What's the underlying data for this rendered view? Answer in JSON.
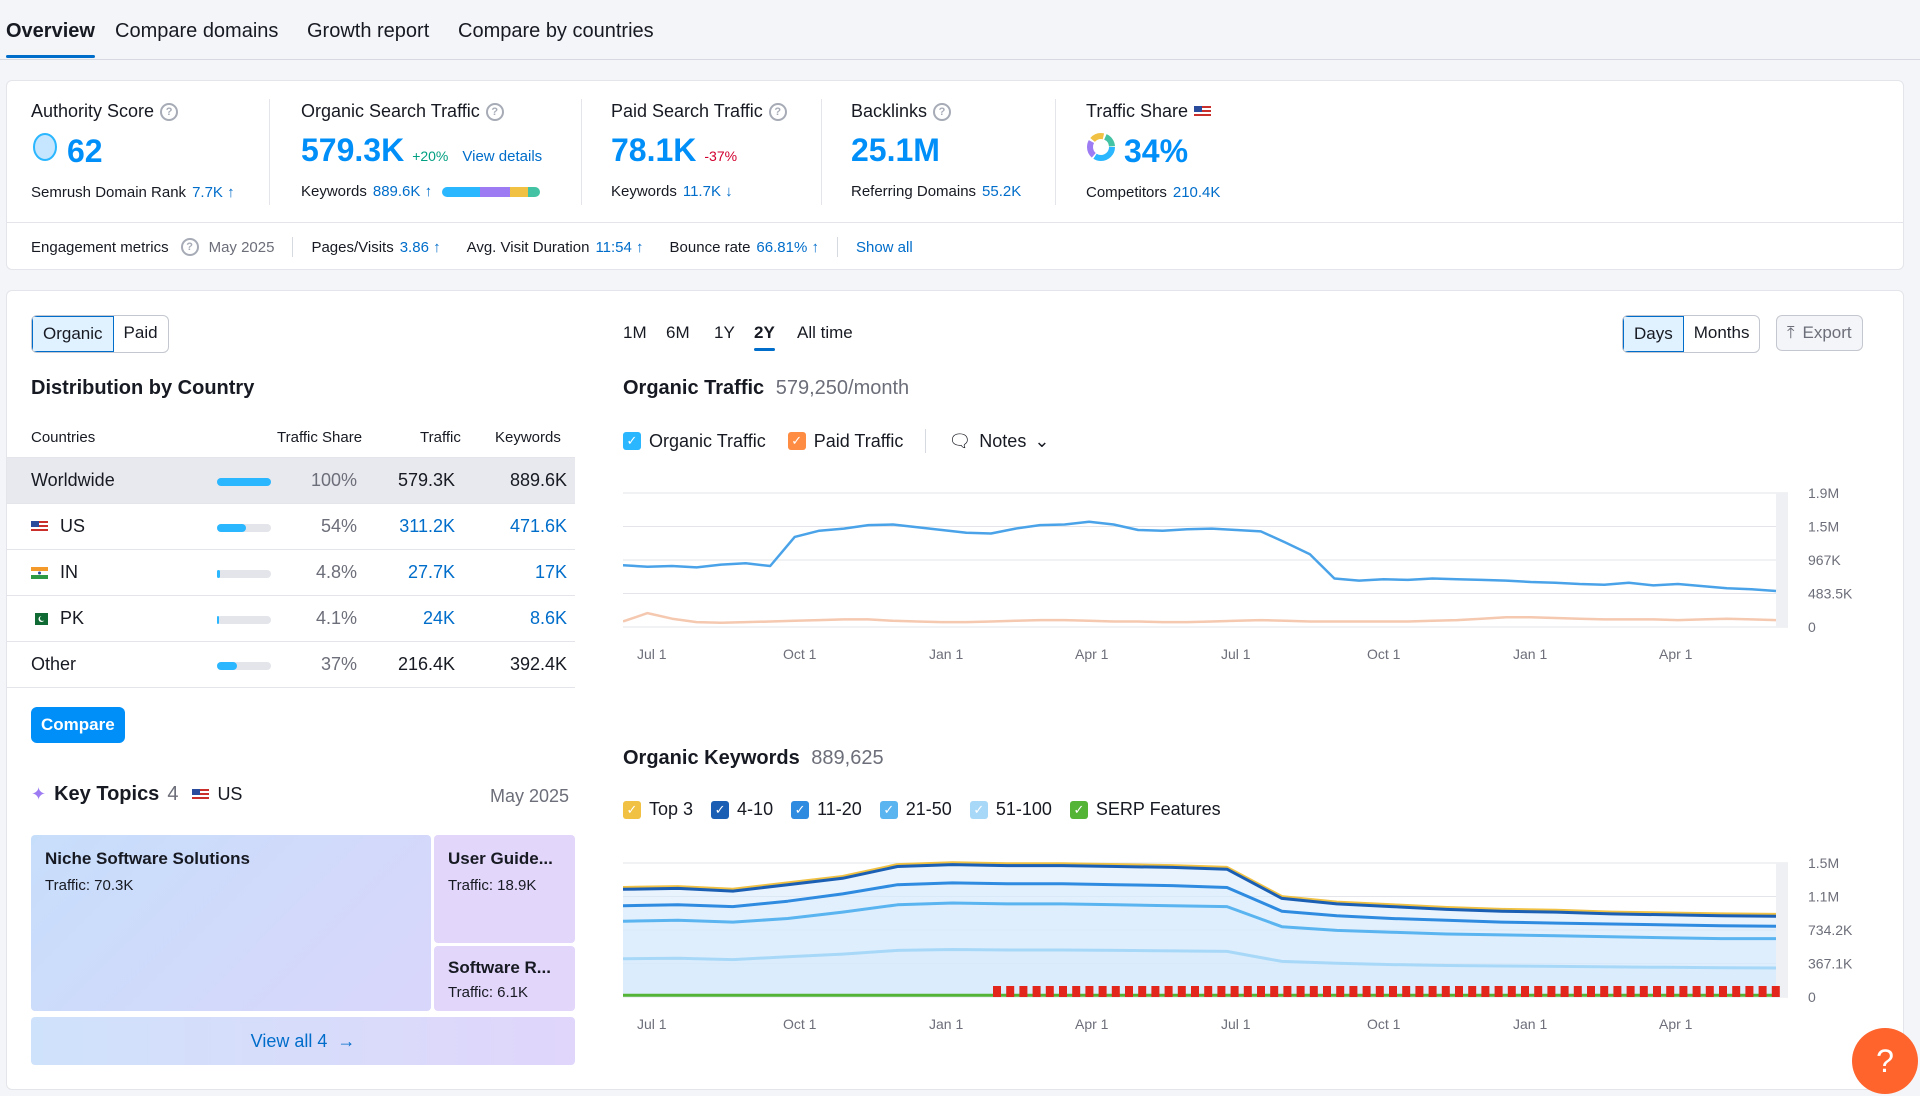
{
  "tabs": [
    "Overview",
    "Compare domains",
    "Growth report",
    "Compare by countries"
  ],
  "metrics": {
    "authority": {
      "label": "Authority Score",
      "value": "62",
      "sub_label": "Semrush Domain Rank",
      "sub_value": "7.7K ↑"
    },
    "organic": {
      "label": "Organic Search Traffic",
      "value": "579.3K",
      "delta": "+20%",
      "link": "View details",
      "sub_label": "Keywords",
      "sub_value": "889.6K ↑"
    },
    "paid": {
      "label": "Paid Search Traffic",
      "value": "78.1K",
      "delta": "-37%",
      "sub_label": "Keywords",
      "sub_value": "11.7K ↓"
    },
    "backlinks": {
      "label": "Backlinks",
      "value": "25.1M",
      "sub_label": "Referring Domains",
      "sub_value": "55.2K"
    },
    "share": {
      "label": "Traffic Share",
      "value": "34%",
      "sub_label": "Competitors",
      "sub_value": "210.4K"
    }
  },
  "engagement": {
    "label": "Engagement metrics",
    "date": "May 2025",
    "pages_label": "Pages/Visits",
    "pages_value": "3.86 ↑",
    "duration_label": "Avg. Visit Duration",
    "duration_value": "11:54 ↑",
    "bounce_label": "Bounce rate",
    "bounce_value": "66.81% ↑",
    "show_all": "Show all"
  },
  "left": {
    "toggle": [
      "Organic",
      "Paid"
    ],
    "title": "Distribution by Country",
    "headers": [
      "Countries",
      "Traffic Share",
      "Traffic",
      "Keywords"
    ],
    "rows": [
      {
        "country": "Worldwide",
        "share": "100%",
        "share_num": 1.0,
        "traffic": "579.3K",
        "keywords": "889.6K"
      },
      {
        "country": "US",
        "share": "54%",
        "share_num": 0.54,
        "traffic": "311.2K",
        "keywords": "471.6K"
      },
      {
        "country": "IN",
        "share": "4.8%",
        "share_num": 0.048,
        "traffic": "27.7K",
        "keywords": "17K"
      },
      {
        "country": "PK",
        "share": "4.1%",
        "share_num": 0.041,
        "traffic": "24K",
        "keywords": "8.6K"
      },
      {
        "country": "Other",
        "share": "37%",
        "share_num": 0.37,
        "traffic": "216.4K",
        "keywords": "392.4K"
      }
    ],
    "compare": "Compare",
    "topics": {
      "title": "Key Topics",
      "count": "4",
      "country": "US",
      "date": "May 2025",
      "tiles": [
        {
          "title": "Niche Software Solutions",
          "traffic": "Traffic: 70.3K"
        },
        {
          "title": "User Guide...",
          "traffic": "Traffic: 18.9K"
        },
        {
          "title": "Software R...",
          "traffic": "Traffic: 6.1K"
        }
      ],
      "view_all": "View all 4"
    }
  },
  "right": {
    "ranges": [
      "1M",
      "6M",
      "1Y",
      "2Y",
      "All time"
    ],
    "active_range": "2Y",
    "granularity": [
      "Days",
      "Months"
    ],
    "export": "Export",
    "traffic_title": "Organic Traffic",
    "traffic_value": "579,250/month",
    "traffic_legend": [
      "Organic Traffic",
      "Paid Traffic",
      "Notes"
    ],
    "keywords_title": "Organic Keywords",
    "keywords_value": "889,625",
    "keywords_legend": [
      "Top 3",
      "4-10",
      "11-20",
      "21-50",
      "51-100",
      "SERP Features"
    ]
  },
  "chart_data": [
    {
      "type": "line",
      "title": "Organic Traffic",
      "x_ticks": [
        "Jul 1",
        "Oct 1",
        "Jan 1",
        "Apr 1",
        "Jul 1",
        "Oct 1",
        "Jan 1",
        "Apr 1"
      ],
      "y_ticks": [
        "1.9M",
        "1.5M",
        "967K",
        "483.5K",
        "0"
      ],
      "ylim": [
        0,
        1934000
      ],
      "series": [
        {
          "name": "Organic Traffic",
          "color": "#4aa3e8",
          "values": [
            890000,
            870000,
            880000,
            860000,
            900000,
            920000,
            880000,
            1300000,
            1390000,
            1420000,
            1470000,
            1480000,
            1440000,
            1400000,
            1360000,
            1350000,
            1420000,
            1470000,
            1480000,
            1520000,
            1480000,
            1400000,
            1390000,
            1410000,
            1420000,
            1400000,
            1380000,
            1220000,
            1050000,
            700000,
            670000,
            690000,
            680000,
            700000,
            690000,
            680000,
            670000,
            650000,
            640000,
            620000,
            610000,
            640000,
            600000,
            620000,
            590000,
            560000,
            545000,
            520000
          ]
        },
        {
          "name": "Paid Traffic",
          "color": "#f5c8b0",
          "values": [
            80000,
            200000,
            120000,
            70000,
            60000,
            70000,
            80000,
            90000,
            100000,
            110000,
            110000,
            90000,
            80000,
            70000,
            70000,
            80000,
            90000,
            100000,
            100000,
            90000,
            80000,
            80000,
            70000,
            70000,
            80000,
            90000,
            100000,
            90000,
            80000,
            80000,
            80000,
            80000,
            80000,
            90000,
            100000,
            120000,
            140000,
            140000,
            130000,
            120000,
            110000,
            110000,
            110000,
            100000,
            110000,
            120000,
            110000,
            100000
          ]
        }
      ]
    },
    {
      "type": "area",
      "title": "Organic Keywords",
      "x_ticks": [
        "Jul 1",
        "Oct 1",
        "Jan 1",
        "Apr 1",
        "Jul 1",
        "Oct 1",
        "Jan 1",
        "Apr 1"
      ],
      "y_ticks": [
        "1.5M",
        "1.1M",
        "734.2K",
        "367.1K",
        "0"
      ],
      "ylim": [
        0,
        1468000
      ],
      "series": [
        {
          "name": "Top 3",
          "color": "#f0c142",
          "values": [
            1200000,
            1210000,
            1180000,
            1250000,
            1320000,
            1450000,
            1470000,
            1460000,
            1460000,
            1450000,
            1440000,
            1420000,
            1100000,
            1040000,
            1010000,
            980000,
            960000,
            950000,
            930000,
            920000,
            910000,
            905000
          ]
        },
        {
          "name": "4-10",
          "color": "#1a5fb4",
          "values": [
            1180000,
            1190000,
            1160000,
            1230000,
            1300000,
            1430000,
            1450000,
            1440000,
            1440000,
            1430000,
            1420000,
            1400000,
            1080000,
            1020000,
            990000,
            960000,
            940000,
            930000,
            910000,
            900000,
            890000,
            885000
          ]
        },
        {
          "name": "11-20",
          "color": "#2f8be0",
          "values": [
            1000000,
            1010000,
            990000,
            1050000,
            1130000,
            1230000,
            1250000,
            1240000,
            1240000,
            1230000,
            1220000,
            1200000,
            940000,
            890000,
            860000,
            840000,
            820000,
            810000,
            800000,
            790000,
            780000,
            775000
          ]
        },
        {
          "name": "21-50",
          "color": "#5ab4f0",
          "values": [
            830000,
            840000,
            820000,
            860000,
            930000,
            1010000,
            1030000,
            1020000,
            1020000,
            1010000,
            1000000,
            990000,
            770000,
            730000,
            710000,
            690000,
            680000,
            670000,
            660000,
            650000,
            640000,
            640000
          ]
        },
        {
          "name": "51-100",
          "color": "#a8d8f8",
          "values": [
            420000,
            425000,
            410000,
            440000,
            470000,
            510000,
            520000,
            515000,
            515000,
            510000,
            505000,
            500000,
            390000,
            370000,
            355000,
            345000,
            340000,
            335000,
            330000,
            325000,
            320000,
            318000
          ]
        },
        {
          "name": "SERP Features",
          "color": "#54b435",
          "values": [
            20000,
            20000,
            20000,
            20000,
            20000,
            20000,
            20000,
            20000,
            20000,
            20000,
            20000,
            20000,
            20000,
            20000,
            20000,
            20000,
            20000,
            20000,
            20000,
            20000,
            20000,
            20000
          ]
        }
      ]
    }
  ],
  "help": "?"
}
